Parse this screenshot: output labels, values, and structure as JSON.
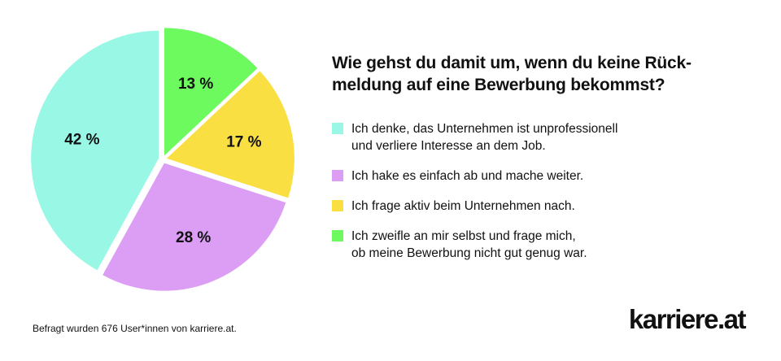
{
  "chart_data": {
    "type": "pie",
    "title_lines": [
      "Wie gehst du damit um, wenn du keine Rück-",
      "meldung auf eine Bewerbung bekommst?"
    ],
    "slices": [
      {
        "label_lines": [
          "Ich denke, das Unternehmen ist unprofessionell",
          "und verliere Interesse an dem Job."
        ],
        "value": 42,
        "value_label": "42 %",
        "color": "#99f8e5"
      },
      {
        "label_lines": [
          "Ich hake es einfach ab und mache weiter."
        ],
        "value": 28,
        "value_label": "28 %",
        "color": "#dc9ef4"
      },
      {
        "label_lines": [
          "Ich frage aktiv beim Unternehmen nach."
        ],
        "value": 17,
        "value_label": "17 %",
        "color": "#fadf43"
      },
      {
        "label_lines": [
          "Ich zweifle an mir selbst und frage mich,",
          "ob meine Bewerbung nicht gut genug war."
        ],
        "value": 13,
        "value_label": "13 %",
        "color": "#6dfa5f"
      }
    ],
    "legend_position": "right"
  },
  "footnote": "Befragt wurden 676 User*innen von karriere.at.",
  "brand": "karriere.at"
}
